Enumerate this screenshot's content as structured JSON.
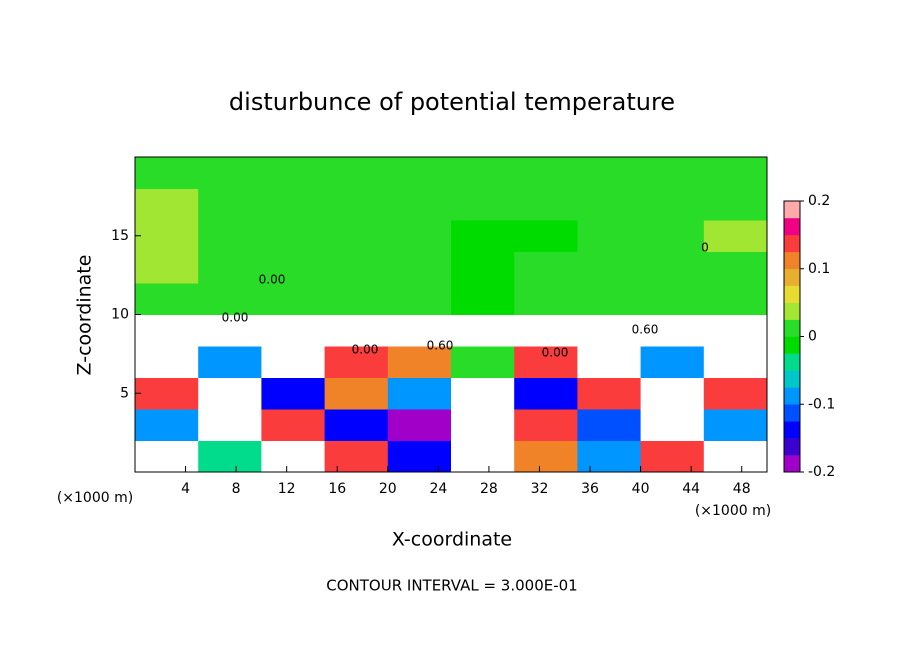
{
  "chart_data": {
    "type": "heatmap",
    "title": "disturbunce of potential temperature",
    "x_label": "X-coordinate",
    "y_label": "Z-coordinate",
    "x_unit": "(×1000 m)",
    "y_unit": "(×1000 m)",
    "footer": "CONTOUR INTERVAL = 3.000E-01",
    "xlim": [
      0,
      50
    ],
    "ylim": [
      0,
      20
    ],
    "xticks": [
      4,
      8,
      12,
      16,
      20,
      24,
      28,
      32,
      36,
      40,
      44,
      48
    ],
    "yticks": [
      5,
      10,
      15
    ],
    "field": [
      [
        0.3,
        -0.05,
        0.3,
        0.15,
        -0.15,
        0.3,
        0.1,
        -0.1,
        0.15,
        0.3
      ],
      [
        -0.1,
        0.3,
        0.15,
        -0.15,
        -0.2,
        0.3,
        0.15,
        -0.12,
        0.3,
        -0.1
      ],
      [
        0.15,
        0.3,
        -0.15,
        0.12,
        -0.1,
        0.3,
        -0.15,
        0.15,
        0.3,
        0.15
      ],
      [
        0.3,
        -0.1,
        0.3,
        0.15,
        0.12,
        0.01,
        0.15,
        0.3,
        -0.1,
        0.3
      ],
      [
        0.5,
        0.5,
        0.5,
        0.5,
        0.5,
        0.5,
        0.5,
        0.5,
        0.5,
        0.5
      ],
      [
        0.01,
        0.01,
        0.01,
        0.01,
        0.01,
        -0.005,
        0.01,
        0.01,
        0.01,
        0.01
      ],
      [
        0.03,
        0.01,
        0.01,
        0.01,
        0.01,
        -0.005,
        0.01,
        0.01,
        0.01,
        0.01
      ],
      [
        0.03,
        0.01,
        0.01,
        0.01,
        0.01,
        -0.005,
        -0.005,
        0.01,
        0.01,
        0.03
      ],
      [
        0.03,
        0.01,
        0.01,
        0.01,
        0.01,
        0.01,
        0.01,
        0.01,
        0.01,
        0.01
      ],
      [
        0.01,
        0.01,
        0.01,
        0.01,
        0.01,
        0.01,
        0.01,
        0.01,
        0.01,
        0.01
      ]
    ],
    "clim": [
      -0.2,
      0.2
    ],
    "colors": [
      "#a000c8",
      "#3c00d0",
      "#0000ff",
      "#0050ff",
      "#0096ff",
      "#00c8c8",
      "#00dc8c",
      "#00dc00",
      "#28dc28",
      "#a0e632",
      "#e6dc32",
      "#e6af2d",
      "#f08228",
      "#fa3c3c",
      "#f00082",
      "#ffaaaa"
    ],
    "cticks": [
      -0.2,
      -0.1,
      0,
      0.1,
      0.2
    ],
    "contour_labels": [
      "0.00",
      "0.00",
      "0.00",
      "0.60",
      "0.00",
      "0.60",
      "0"
    ]
  }
}
